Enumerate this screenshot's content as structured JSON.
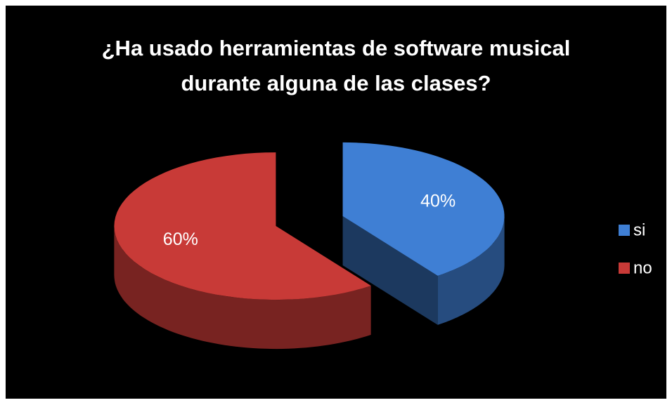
{
  "chart_data": {
    "type": "pie",
    "title": "¿Ha usado herramientas de software musical durante alguna de las clases?",
    "categories": [
      "si",
      "no"
    ],
    "values": [
      40,
      60
    ],
    "value_labels": [
      "40%",
      "60%"
    ],
    "colors": [
      "#3f7fd4",
      "#c83a37"
    ],
    "legend": "right"
  }
}
